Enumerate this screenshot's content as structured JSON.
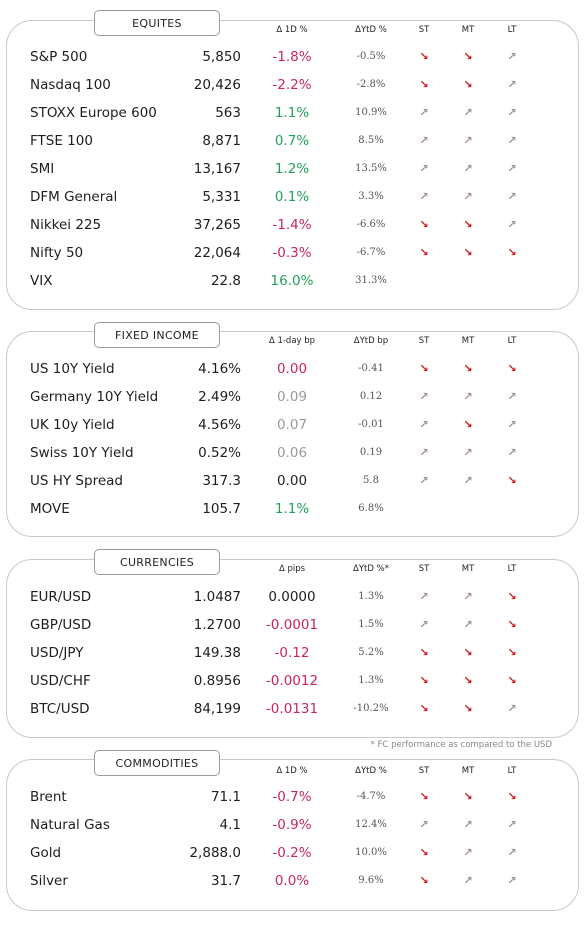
{
  "sections": [
    {
      "id": "equities",
      "title": "EQUITES",
      "headers": {
        "change": "Δ 1D %",
        "ytd": "ΔYtD %",
        "st": "ST",
        "mt": "MT",
        "lt": "LT"
      },
      "rows": [
        {
          "name": "S&P 500",
          "value": "5,850",
          "change": "-1.8%",
          "change_tone": "neg",
          "ytd": "-0.5%",
          "st": "down",
          "mt": "down",
          "lt": "up"
        },
        {
          "name": "Nasdaq 100",
          "value": "20,426",
          "change": "-2.2%",
          "change_tone": "neg",
          "ytd": "-2.8%",
          "st": "down",
          "mt": "down",
          "lt": "up"
        },
        {
          "name": "STOXX Europe 600",
          "value": "563",
          "change": "1.1%",
          "change_tone": "pos",
          "ytd": "10.9%",
          "st": "up",
          "mt": "up",
          "lt": "up"
        },
        {
          "name": "FTSE 100",
          "value": "8,871",
          "change": "0.7%",
          "change_tone": "pos",
          "ytd": "8.5%",
          "st": "up",
          "mt": "up",
          "lt": "up"
        },
        {
          "name": "SMI",
          "value": "13,167",
          "change": "1.2%",
          "change_tone": "pos",
          "ytd": "13.5%",
          "st": "up",
          "mt": "up",
          "lt": "up"
        },
        {
          "name": "DFM General",
          "value": "5,331",
          "change": "0.1%",
          "change_tone": "pos",
          "ytd": "3.3%",
          "st": "up",
          "mt": "up",
          "lt": "up"
        },
        {
          "name": "Nikkei 225",
          "value": "37,265",
          "change": "-1.4%",
          "change_tone": "neg",
          "ytd": "-6.6%",
          "st": "down",
          "mt": "down",
          "lt": "up"
        },
        {
          "name": "Nifty  50",
          "value": "22,064",
          "change": "-0.3%",
          "change_tone": "neg",
          "ytd": "-6.7%",
          "st": "down",
          "mt": "down",
          "lt": "down"
        },
        {
          "name": "VIX",
          "value": "22.8",
          "change": "16.0%",
          "change_tone": "pos",
          "ytd": "31.3%",
          "st": "",
          "mt": "",
          "lt": ""
        }
      ]
    },
    {
      "id": "fixed-income",
      "title": "FIXED INCOME",
      "headers": {
        "change": "Δ 1-day bp",
        "ytd": "ΔYtD bp",
        "st": "ST",
        "mt": "MT",
        "lt": "LT"
      },
      "rows": [
        {
          "name": "US 10Y Yield",
          "value": "4.16%",
          "change": "0.00",
          "change_tone": "neg",
          "ytd": "-0.41",
          "st": "down",
          "mt": "down",
          "lt": "down"
        },
        {
          "name": "Germany 10Y Yield",
          "value": "2.49%",
          "change": "0.09",
          "change_tone": "mut",
          "ytd": "0.12",
          "st": "up",
          "mt": "up",
          "lt": "up"
        },
        {
          "name": "UK 10y Yield",
          "value": "4.56%",
          "change": "0.07",
          "change_tone": "mut",
          "ytd": "-0.01",
          "st": "up",
          "mt": "down",
          "lt": "up"
        },
        {
          "name": "Swiss 10Y Yield",
          "value": "0.52%",
          "change": "0.06",
          "change_tone": "mut",
          "ytd": "0.19",
          "st": "up",
          "mt": "up",
          "lt": "up"
        },
        {
          "name": "US HY Spread",
          "value": "317.3",
          "change": "0.00",
          "change_tone": "neu",
          "ytd": "5.8",
          "st": "up",
          "mt": "up",
          "lt": "down"
        },
        {
          "name": "MOVE",
          "value": "105.7",
          "change": "1.1%",
          "change_tone": "pos",
          "ytd": "6.8%",
          "st": "",
          "mt": "",
          "lt": ""
        }
      ]
    },
    {
      "id": "currencies",
      "title": "CURRENCIES",
      "headers": {
        "change": "Δ pips",
        "ytd": "ΔYtD %*",
        "st": "ST",
        "mt": "MT",
        "lt": "LT"
      },
      "rows": [
        {
          "name": "EUR/USD",
          "value": "1.0487",
          "change": "0.0000",
          "change_tone": "neu",
          "ytd": "1.3%",
          "st": "up",
          "mt": "up",
          "lt": "down"
        },
        {
          "name": "GBP/USD",
          "value": "1.2700",
          "change": "-0.0001",
          "change_tone": "neg",
          "ytd": "1.5%",
          "st": "up",
          "mt": "up",
          "lt": "down"
        },
        {
          "name": "USD/JPY",
          "value": "149.38",
          "change": "-0.12",
          "change_tone": "neg",
          "ytd": "5.2%",
          "st": "down",
          "mt": "down",
          "lt": "down"
        },
        {
          "name": "USD/CHF",
          "value": "0.8956",
          "change": "-0.0012",
          "change_tone": "neg",
          "ytd": "1.3%",
          "st": "down",
          "mt": "down",
          "lt": "down"
        },
        {
          "name": "BTC/USD",
          "value": "84,199",
          "change": "-0.0131",
          "change_tone": "neg",
          "ytd": "-10.2%",
          "st": "down",
          "mt": "down",
          "lt": "up"
        }
      ]
    },
    {
      "id": "commodities",
      "title": "COMMODITIES",
      "headers": {
        "change": "Δ 1D %",
        "ytd": "ΔYtD %",
        "st": "ST",
        "mt": "MT",
        "lt": "LT"
      },
      "rows": [
        {
          "name": "Brent",
          "value": "71.1",
          "change": "-0.7%",
          "change_tone": "neg",
          "ytd": "-4.7%",
          "st": "down",
          "mt": "down",
          "lt": "down"
        },
        {
          "name": "Natural Gas",
          "value": "4.1",
          "change": "-0.9%",
          "change_tone": "neg",
          "ytd": "12.4%",
          "st": "up",
          "mt": "up",
          "lt": "up"
        },
        {
          "name": "Gold",
          "value": "2,888.0",
          "change": "-0.2%",
          "change_tone": "neg",
          "ytd": "10.0%",
          "st": "down",
          "mt": "up",
          "lt": "up"
        },
        {
          "name": "Silver",
          "value": "31.7",
          "change": "0.0%",
          "change_tone": "neg",
          "ytd": "9.6%",
          "st": "down",
          "mt": "up",
          "lt": "up"
        }
      ]
    }
  ],
  "footnote": "* FC performance as compared to the USD",
  "colors": {
    "negative": "#c8285a",
    "positive": "#24a05c",
    "arrow_down": "#c8191e",
    "arrow_up": "#a09087"
  },
  "icons": {
    "down": "arrow-down-right-icon",
    "up": "arrow-up-right-icon"
  }
}
